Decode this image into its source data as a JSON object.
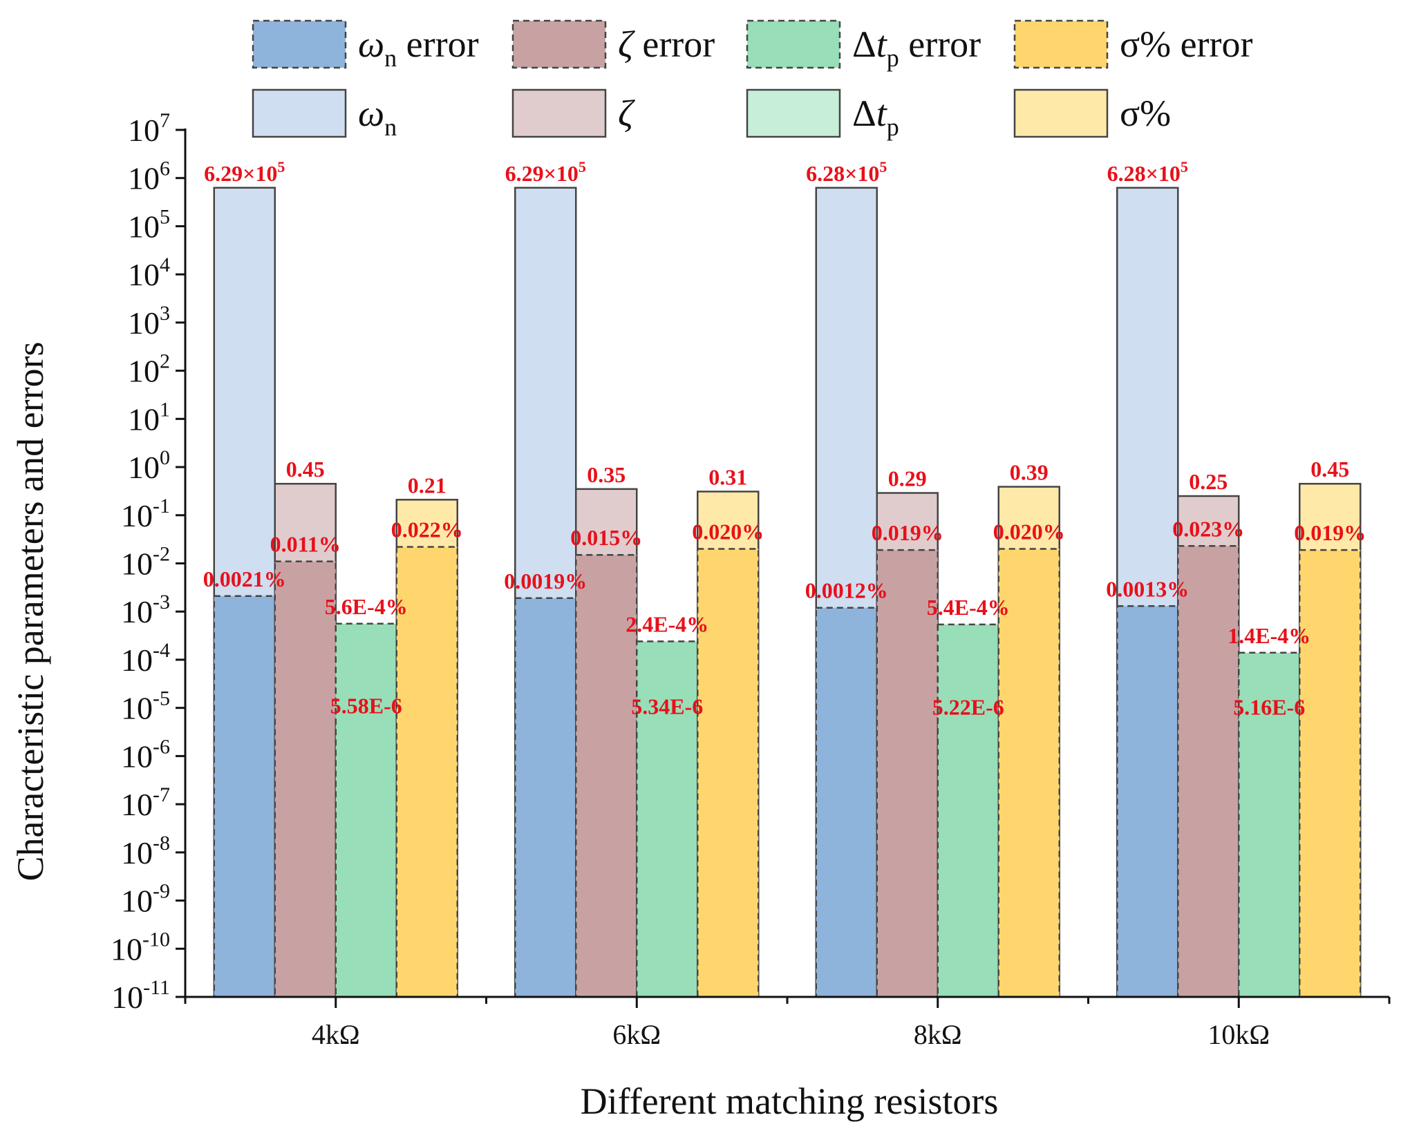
{
  "chart_data": {
    "type": "bar",
    "xlabel": "Different matching resistors",
    "ylabel": "Characteristic parameters and errors",
    "yscale": "log",
    "ylim": [
      1e-11,
      10000000.0
    ],
    "y_tick_labels": [
      {
        "base": "10",
        "exp": "-11"
      },
      {
        "base": "10",
        "exp": "-10"
      },
      {
        "base": "10",
        "exp": "-9"
      },
      {
        "base": "10",
        "exp": "-8"
      },
      {
        "base": "10",
        "exp": "-7"
      },
      {
        "base": "10",
        "exp": "-6"
      },
      {
        "base": "10",
        "exp": "-5"
      },
      {
        "base": "10",
        "exp": "-4"
      },
      {
        "base": "10",
        "exp": "-3"
      },
      {
        "base": "10",
        "exp": "-2"
      },
      {
        "base": "10",
        "exp": "-1"
      },
      {
        "base": "10",
        "exp": "0"
      },
      {
        "base": "10",
        "exp": "1"
      },
      {
        "base": "10",
        "exp": "2"
      },
      {
        "base": "10",
        "exp": "3"
      },
      {
        "base": "10",
        "exp": "4"
      },
      {
        "base": "10",
        "exp": "5"
      },
      {
        "base": "10",
        "exp": "6"
      },
      {
        "base": "10",
        "exp": "7"
      }
    ],
    "categories": [
      "4kΩ",
      "6kΩ",
      "8kΩ",
      "10kΩ"
    ],
    "legend_position": "top",
    "legend": [
      {
        "main": "ω",
        "sub": "n",
        "suffix": " error",
        "italic": true,
        "pre": "",
        "color": "#8fb4dc",
        "dashed": true
      },
      {
        "main": "ζ",
        "sub": "",
        "suffix": " error",
        "italic": true,
        "pre": "",
        "color": "#c8a2a3",
        "dashed": true
      },
      {
        "main": "t",
        "sub": "p",
        "suffix": " error",
        "italic": true,
        "pre": "Δ",
        "color": "#98deb8",
        "dashed": true
      },
      {
        "main": "σ%",
        "sub": "",
        "suffix": " error",
        "italic": false,
        "pre": "",
        "color": "#ffd66e",
        "dashed": true
      },
      {
        "main": "ω",
        "sub": "n",
        "suffix": "",
        "italic": true,
        "pre": "",
        "color": "#cfdef0",
        "dashed": false
      },
      {
        "main": "ζ",
        "sub": "",
        "suffix": "",
        "italic": true,
        "pre": "",
        "color": "#e0cccd",
        "dashed": false
      },
      {
        "main": "t",
        "sub": "p",
        "suffix": "",
        "italic": true,
        "pre": "Δ",
        "color": "#c6eed8",
        "dashed": false
      },
      {
        "main": "σ%",
        "sub": "",
        "suffix": "",
        "italic": false,
        "pre": "",
        "color": "#ffe9a8",
        "dashed": false
      }
    ],
    "series": [
      {
        "name": "ω_n",
        "color": "#cfdef0",
        "error_color": "#8fb4dc",
        "values": [
          629000,
          629000,
          628000,
          628000
        ],
        "value_labels": [
          {
            "base": "6.29×10",
            "exp": "5"
          },
          {
            "base": "6.29×10",
            "exp": "5"
          },
          {
            "base": "6.28×10",
            "exp": "5"
          },
          {
            "base": "6.28×10",
            "exp": "5"
          }
        ],
        "errors": [
          0.0021,
          0.0019,
          0.0012,
          0.0013
        ],
        "error_labels": [
          "0.0021%",
          "0.0019%",
          "0.0012%",
          "0.0013%"
        ]
      },
      {
        "name": "ζ",
        "color": "#e0cccd",
        "error_color": "#c8a2a3",
        "values": [
          0.45,
          0.35,
          0.29,
          0.25
        ],
        "value_labels": [
          {
            "base": "0.45",
            "exp": ""
          },
          {
            "base": "0.35",
            "exp": ""
          },
          {
            "base": "0.29",
            "exp": ""
          },
          {
            "base": "0.25",
            "exp": ""
          }
        ],
        "errors": [
          0.011,
          0.015,
          0.019,
          0.023
        ],
        "error_labels": [
          "0.011%",
          "0.015%",
          "0.019%",
          "0.023%"
        ]
      },
      {
        "name": "Δt_p",
        "color": "#c6eed8",
        "error_color": "#98deb8",
        "values": [
          5.58e-06,
          5.34e-06,
          5.22e-06,
          5.16e-06
        ],
        "value_labels": [
          {
            "base": "5.58E-6",
            "exp": ""
          },
          {
            "base": "5.34E-6",
            "exp": ""
          },
          {
            "base": "5.22E-6",
            "exp": ""
          },
          {
            "base": "5.16E-6",
            "exp": ""
          }
        ],
        "errors": [
          0.00056,
          0.00024,
          0.00054,
          0.00014
        ],
        "error_labels": [
          "5.6E-4%",
          "2.4E-4%",
          "5.4E-4%",
          "1.4E-4%"
        ]
      },
      {
        "name": "σ%",
        "color": "#ffe9a8",
        "error_color": "#ffd66e",
        "values": [
          0.21,
          0.31,
          0.39,
          0.45
        ],
        "value_labels": [
          {
            "base": "0.21",
            "exp": ""
          },
          {
            "base": "0.31",
            "exp": ""
          },
          {
            "base": "0.39",
            "exp": ""
          },
          {
            "base": "0.45",
            "exp": ""
          }
        ],
        "errors": [
          0.022,
          0.02,
          0.02,
          0.019
        ],
        "error_labels": [
          "0.022%",
          "0.020%",
          "0.020%",
          "0.019%"
        ]
      }
    ]
  }
}
